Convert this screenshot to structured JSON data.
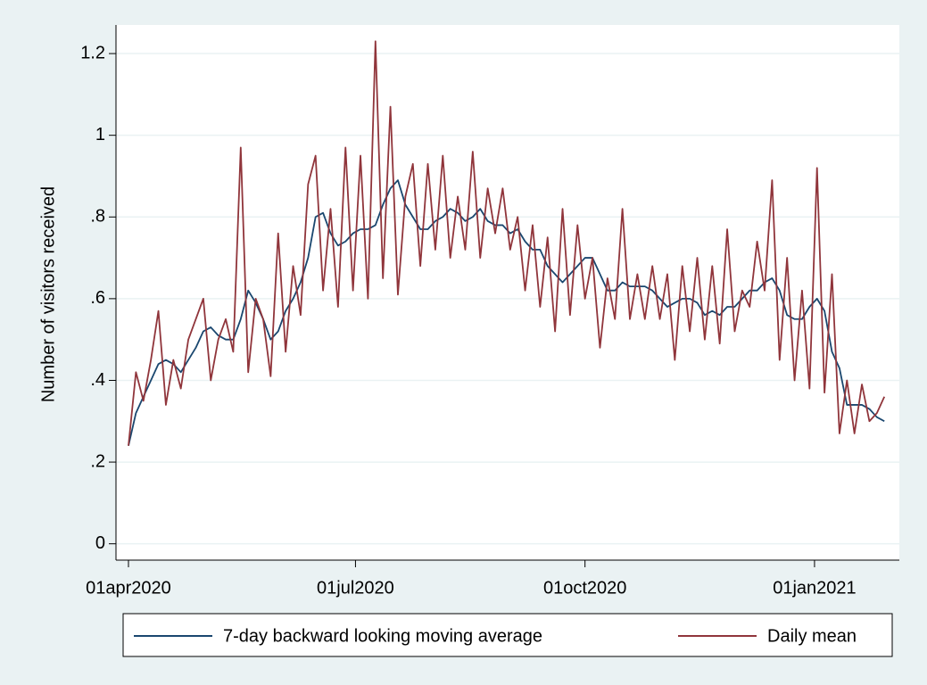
{
  "chart_data": {
    "type": "line",
    "y_label": "Number of visitors received",
    "x": [
      "2020-04-01",
      "2020-04-04",
      "2020-04-07",
      "2020-04-10",
      "2020-04-13",
      "2020-04-16",
      "2020-04-19",
      "2020-04-22",
      "2020-04-25",
      "2020-04-28",
      "2020-05-01",
      "2020-05-04",
      "2020-05-07",
      "2020-05-10",
      "2020-05-13",
      "2020-05-16",
      "2020-05-19",
      "2020-05-22",
      "2020-05-25",
      "2020-05-28",
      "2020-05-31",
      "2020-06-03",
      "2020-06-06",
      "2020-06-09",
      "2020-06-12",
      "2020-06-15",
      "2020-06-18",
      "2020-06-21",
      "2020-06-24",
      "2020-06-27",
      "2020-06-30",
      "2020-07-03",
      "2020-07-06",
      "2020-07-09",
      "2020-07-12",
      "2020-07-15",
      "2020-07-18",
      "2020-07-21",
      "2020-07-24",
      "2020-07-27",
      "2020-07-30",
      "2020-08-02",
      "2020-08-05",
      "2020-08-08",
      "2020-08-11",
      "2020-08-14",
      "2020-08-17",
      "2020-08-20",
      "2020-08-23",
      "2020-08-26",
      "2020-08-29",
      "2020-09-01",
      "2020-09-04",
      "2020-09-07",
      "2020-09-10",
      "2020-09-13",
      "2020-09-16",
      "2020-09-19",
      "2020-09-22",
      "2020-09-25",
      "2020-09-28",
      "2020-10-01",
      "2020-10-04",
      "2020-10-07",
      "2020-10-10",
      "2020-10-13",
      "2020-10-16",
      "2020-10-19",
      "2020-10-22",
      "2020-10-25",
      "2020-10-28",
      "2020-10-31",
      "2020-11-03",
      "2020-11-06",
      "2020-11-09",
      "2020-11-12",
      "2020-11-15",
      "2020-11-18",
      "2020-11-21",
      "2020-11-24",
      "2020-11-27",
      "2020-11-30",
      "2020-12-03",
      "2020-12-06",
      "2020-12-09",
      "2020-12-12",
      "2020-12-15",
      "2020-12-18",
      "2020-12-21",
      "2020-12-24",
      "2020-12-27",
      "2020-12-30",
      "2021-01-02",
      "2021-01-05",
      "2021-01-08",
      "2021-01-11",
      "2021-01-14",
      "2021-01-17",
      "2021-01-20",
      "2021-01-23",
      "2021-01-26",
      "2021-01-29"
    ],
    "series": [
      {
        "name": "7-day backward looking moving average",
        "color": "#1a476f",
        "values": [
          0.24,
          0.32,
          0.36,
          0.4,
          0.44,
          0.45,
          0.44,
          0.42,
          0.45,
          0.48,
          0.52,
          0.53,
          0.51,
          0.5,
          0.5,
          0.55,
          0.62,
          0.59,
          0.55,
          0.5,
          0.52,
          0.57,
          0.6,
          0.64,
          0.7,
          0.8,
          0.81,
          0.76,
          0.73,
          0.74,
          0.76,
          0.77,
          0.77,
          0.78,
          0.83,
          0.87,
          0.89,
          0.83,
          0.8,
          0.77,
          0.77,
          0.79,
          0.8,
          0.82,
          0.81,
          0.79,
          0.8,
          0.82,
          0.79,
          0.78,
          0.78,
          0.76,
          0.77,
          0.74,
          0.72,
          0.72,
          0.68,
          0.66,
          0.64,
          0.66,
          0.68,
          0.7,
          0.7,
          0.66,
          0.62,
          0.62,
          0.64,
          0.63,
          0.63,
          0.63,
          0.62,
          0.6,
          0.58,
          0.59,
          0.6,
          0.6,
          0.59,
          0.56,
          0.57,
          0.56,
          0.58,
          0.58,
          0.6,
          0.62,
          0.62,
          0.64,
          0.65,
          0.62,
          0.56,
          0.55,
          0.55,
          0.58,
          0.6,
          0.57,
          0.47,
          0.43,
          0.34,
          0.34,
          0.34,
          0.33,
          0.31,
          0.3
        ]
      },
      {
        "name": "Daily mean",
        "color": "#90353b",
        "values": [
          0.24,
          0.42,
          0.35,
          0.45,
          0.57,
          0.34,
          0.45,
          0.38,
          0.5,
          0.55,
          0.6,
          0.4,
          0.5,
          0.55,
          0.47,
          0.97,
          0.42,
          0.6,
          0.55,
          0.41,
          0.76,
          0.47,
          0.68,
          0.56,
          0.88,
          0.95,
          0.62,
          0.82,
          0.58,
          0.97,
          0.62,
          0.95,
          0.6,
          1.23,
          0.65,
          1.07,
          0.61,
          0.85,
          0.93,
          0.68,
          0.93,
          0.72,
          0.95,
          0.7,
          0.85,
          0.72,
          0.96,
          0.7,
          0.87,
          0.76,
          0.87,
          0.72,
          0.8,
          0.62,
          0.78,
          0.58,
          0.75,
          0.52,
          0.82,
          0.56,
          0.78,
          0.6,
          0.7,
          0.48,
          0.65,
          0.55,
          0.82,
          0.55,
          0.66,
          0.55,
          0.68,
          0.55,
          0.66,
          0.45,
          0.68,
          0.52,
          0.7,
          0.5,
          0.68,
          0.49,
          0.77,
          0.52,
          0.62,
          0.58,
          0.74,
          0.62,
          0.89,
          0.45,
          0.7,
          0.4,
          0.62,
          0.38,
          0.92,
          0.37,
          0.66,
          0.27,
          0.4,
          0.27,
          0.39,
          0.3,
          0.32,
          0.36
        ]
      }
    ],
    "xlim": [
      "2020-03-27",
      "2021-02-04"
    ],
    "xticks": [
      {
        "value": "2020-04-01",
        "label": "01apr2020"
      },
      {
        "value": "2020-07-01",
        "label": "01jul2020"
      },
      {
        "value": "2020-10-01",
        "label": "01oct2020"
      },
      {
        "value": "2021-01-01",
        "label": "01jan2021"
      }
    ],
    "ylim": [
      -0.04,
      1.27
    ],
    "yticks": [
      0,
      {
        "value": 0.2,
        "label": ".2"
      },
      {
        "value": 0.4,
        "label": ".4"
      },
      {
        "value": 0.6,
        "label": ".6"
      },
      {
        "value": 0.8,
        "label": ".8"
      },
      1,
      1.2
    ],
    "grid": true,
    "legend": "bottom"
  }
}
